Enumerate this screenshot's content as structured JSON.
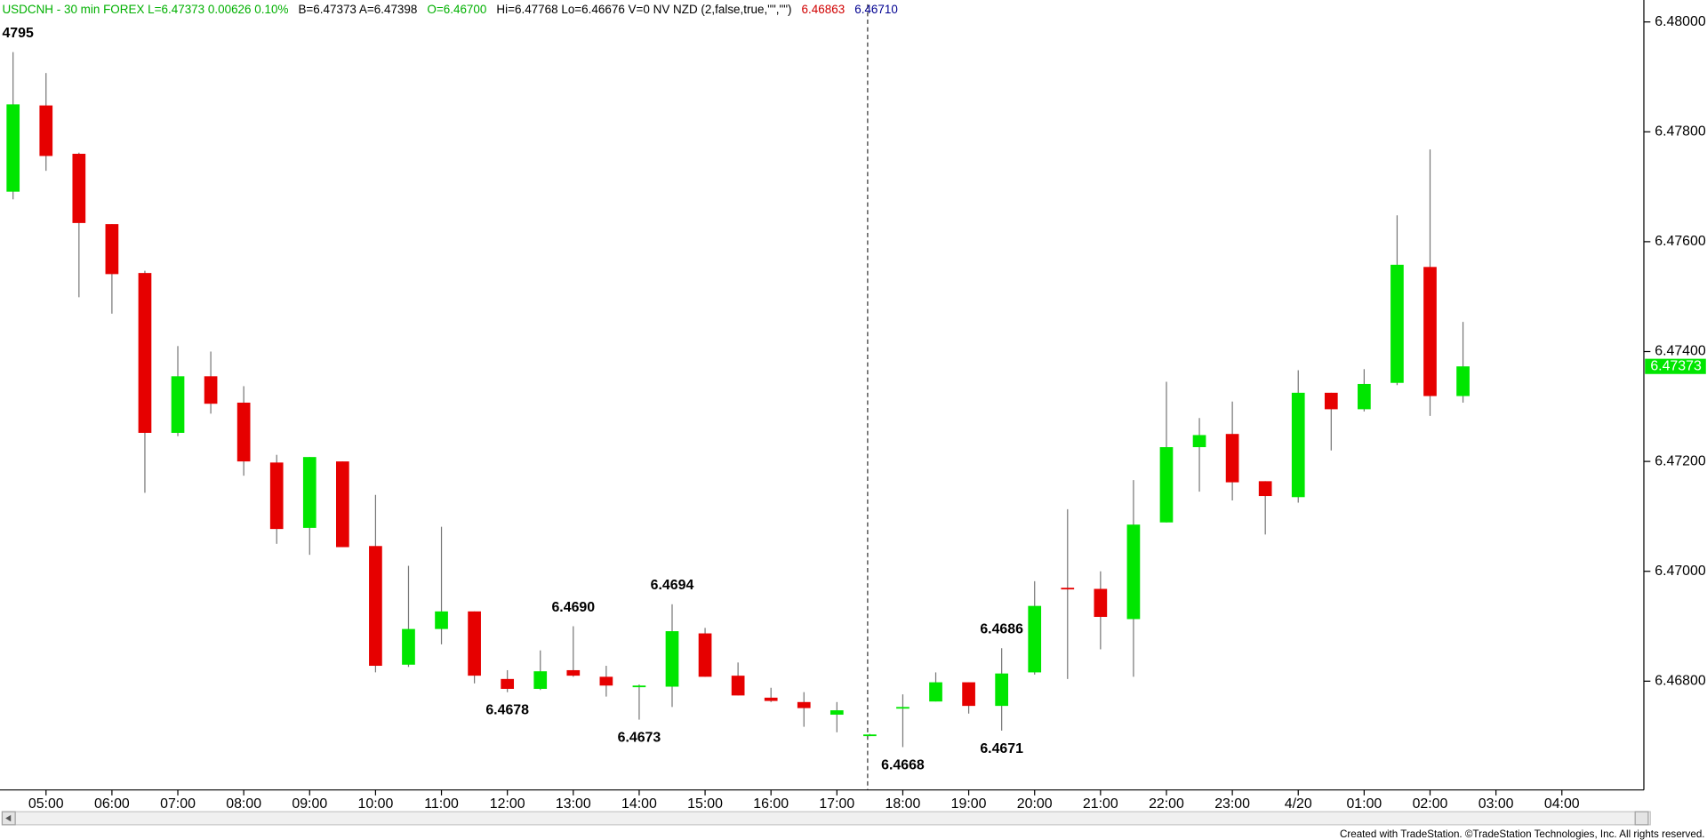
{
  "chart_data": {
    "type": "candlestick",
    "header": [
      {
        "text": "USDCNH - 30 min  FOREX  L=6.47373  0.00626  0.10%",
        "color": "#00b000"
      },
      {
        "text": "B=6.47373  A=6.47398",
        "color": "#000000"
      },
      {
        "text": "O=6.46700",
        "color": "#00b000"
      },
      {
        "text": "Hi=6.47768  Lo=6.46676  V=0  NV NZD (2,false,true,\"\",\"\")",
        "color": "#000000"
      },
      {
        "text": "6.46863",
        "color": "#d00000"
      },
      {
        "text": "6.46710",
        "color": "#000090"
      }
    ],
    "categories": [
      null,
      "05:00",
      null,
      "06:00",
      null,
      "07:00",
      null,
      "08:00",
      null,
      "09:00",
      null,
      "10:00",
      null,
      "11:00",
      null,
      "12:00",
      null,
      "13:00",
      null,
      "14:00",
      null,
      "15:00",
      null,
      "16:00",
      null,
      "17:00",
      null,
      "18:00",
      null,
      "19:00",
      null,
      "20:00",
      null,
      "21:00",
      null,
      "22:00",
      null,
      "23:00",
      null,
      "4/20",
      null,
      "01:00",
      null,
      "02:00",
      null,
      "03:00",
      null,
      "04:00"
    ],
    "open": [
      6.47691,
      6.47848,
      6.4776,
      6.47632,
      6.47543,
      6.47252,
      6.47355,
      6.47307,
      6.47198,
      6.47079,
      6.472,
      6.47046,
      6.4683,
      6.46895,
      6.46927,
      6.46804,
      6.46786,
      6.4682,
      6.46808,
      6.4679,
      6.4679,
      6.46887,
      6.4681,
      6.4677,
      6.46762,
      6.46739,
      6.46702,
      6.46751,
      6.46763,
      6.46798,
      6.46755,
      6.46816,
      6.4697,
      6.46968,
      6.46913,
      6.47089,
      6.47226,
      6.4725,
      6.47164,
      6.47135,
      6.47325,
      6.47295,
      6.47343,
      6.47554,
      6.47319,
      null,
      null,
      null
    ],
    "high": [
      6.47945,
      6.47907,
      6.47762,
      6.47632,
      6.47547,
      6.4741,
      6.474,
      6.47337,
      6.47212,
      6.47208,
      6.472,
      6.47139,
      6.4701,
      6.47081,
      6.46927,
      6.4682,
      6.46856,
      6.469,
      6.46828,
      6.46794,
      6.4694,
      6.46897,
      6.46834,
      6.46788,
      6.4678,
      6.46762,
      6.46704,
      6.46776,
      6.46816,
      6.46798,
      6.4686,
      6.46982,
      6.47113,
      6.47,
      6.47166,
      6.47345,
      6.47279,
      6.47309,
      6.47164,
      6.47366,
      6.47325,
      6.47368,
      6.47648,
      6.47768,
      6.47454,
      null,
      null,
      null
    ],
    "low": [
      6.47677,
      6.47729,
      6.47499,
      6.47469,
      6.47143,
      6.47246,
      6.47287,
      6.47174,
      6.4705,
      6.4703,
      6.47044,
      6.46816,
      6.46826,
      6.46867,
      6.46796,
      6.4678,
      6.46784,
      6.46808,
      6.46772,
      6.4673,
      6.46753,
      6.46808,
      6.46774,
      6.46762,
      6.46717,
      6.46707,
      6.467,
      6.4668,
      6.46763,
      6.46741,
      6.4671,
      6.46812,
      6.46804,
      6.46858,
      6.46808,
      6.47089,
      6.47145,
      6.47129,
      6.47067,
      6.47125,
      6.4722,
      6.47291,
      6.47339,
      6.47283,
      6.47307,
      null,
      null,
      null
    ],
    "close": [
      6.4785,
      6.47756,
      6.47634,
      6.47541,
      6.47252,
      6.47355,
      6.47305,
      6.472,
      6.47077,
      6.47208,
      6.47044,
      6.46828,
      6.46895,
      6.46927,
      6.4681,
      6.46786,
      6.46818,
      6.4681,
      6.46792,
      6.46792,
      6.46891,
      6.46808,
      6.46774,
      6.46764,
      6.46751,
      6.46747,
      6.46703,
      6.46753,
      6.46798,
      6.46755,
      6.46814,
      6.46937,
      6.46968,
      6.46917,
      6.47085,
      6.47226,
      6.47248,
      6.47162,
      6.47137,
      6.47325,
      6.47295,
      6.47341,
      6.47558,
      6.47319,
      6.47373,
      null,
      null,
      null
    ],
    "up_color": "#00e600",
    "down_color": "#e60000",
    "ylim": [
      6.46602,
      6.48034
    ],
    "yticks": [
      {
        "value": 6.48,
        "label": "6.48000"
      },
      {
        "value": 6.478,
        "label": "6.47800"
      },
      {
        "value": 6.476,
        "label": "6.47600"
      },
      {
        "value": 6.474,
        "label": "6.47400"
      },
      {
        "value": 6.472,
        "label": "6.47200"
      },
      {
        "value": 6.47,
        "label": "6.47000"
      },
      {
        "value": 6.468,
        "label": "6.46800"
      }
    ],
    "last_price": {
      "value": 6.47373,
      "label": "6.47373"
    },
    "annotations": [
      {
        "candle": 0,
        "side": "high",
        "label": "4795"
      },
      {
        "candle": 15,
        "side": "low",
        "label": "6.4678"
      },
      {
        "candle": 17,
        "side": "high",
        "label": "6.4690"
      },
      {
        "candle": 19,
        "side": "low",
        "label": "6.4673"
      },
      {
        "candle": 20,
        "side": "high",
        "label": "6.4694"
      },
      {
        "candle": 27,
        "side": "low",
        "label": "6.4668"
      },
      {
        "candle": 30,
        "side": "high",
        "label": "6.4686"
      },
      {
        "candle": 30,
        "side": "low",
        "label": "6.4671"
      }
    ],
    "footer": "Created with TradeStation. ©TradeStation Technologies, Inc. All rights reserved."
  }
}
